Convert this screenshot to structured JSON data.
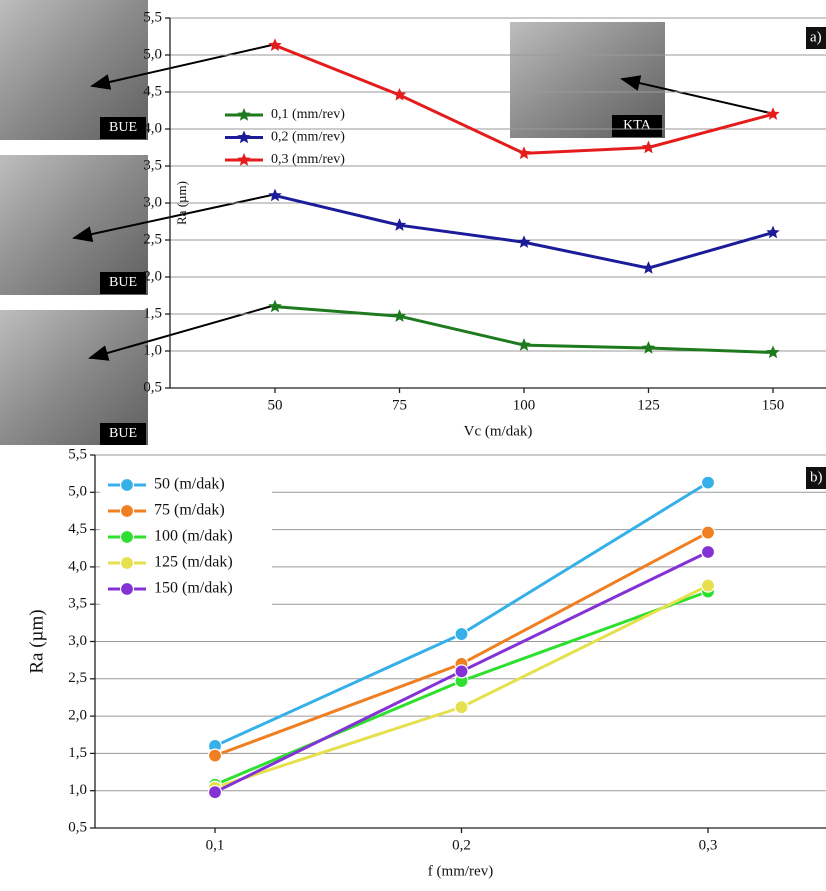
{
  "chart_data": [
    {
      "type": "line",
      "marker": "star",
      "panel_label": "a)",
      "xlabel": "Vc (m/dak)",
      "ylabel": "Ra (µm)",
      "categories": [
        "50",
        "75",
        "100",
        "125",
        "150"
      ],
      "series": [
        {
          "name": "0,1 (mm/rev)",
          "color": "#1f7a1f",
          "values": [
            1.6,
            1.47,
            1.08,
            1.04,
            0.98
          ]
        },
        {
          "name": "0,2 (mm/rev)",
          "color": "#1c1c9a",
          "values": [
            3.1,
            2.7,
            2.47,
            2.12,
            2.6
          ]
        },
        {
          "name": "0,3 (mm/rev)",
          "color": "#e41c1c",
          "values": [
            5.13,
            4.46,
            3.67,
            3.75,
            4.2
          ]
        }
      ],
      "ylim": [
        0.5,
        5.5
      ],
      "yticks": [
        {
          "value": 0.5,
          "label": "0,5"
        },
        {
          "value": 1.0,
          "label": "1,0"
        },
        {
          "value": 1.5,
          "label": "1,5"
        },
        {
          "value": 2.0,
          "label": "2,0"
        },
        {
          "value": 2.5,
          "label": "2,5"
        },
        {
          "value": 3.0,
          "label": "3,0"
        },
        {
          "value": 3.5,
          "label": "3,5"
        },
        {
          "value": 4.0,
          "label": "4,0"
        },
        {
          "value": 4.5,
          "label": "4,5"
        },
        {
          "value": 5.0,
          "label": "5,0"
        },
        {
          "value": 5.5,
          "label": "5,5"
        }
      ],
      "grid": true,
      "annotations": [
        "BUE",
        "BUE",
        "BUE",
        "KTA"
      ]
    },
    {
      "type": "line",
      "marker": "circle",
      "panel_label": "b)",
      "xlabel": "f (mm/rev)",
      "ylabel": "Ra (µm)",
      "categories": [
        "0,1",
        "0,2",
        "0,3"
      ],
      "series": [
        {
          "name": "50 (m/dak)",
          "color": "#35b0e8",
          "values": [
            1.6,
            3.1,
            5.13
          ]
        },
        {
          "name": "75 (m/dak)",
          "color": "#f07f22",
          "values": [
            1.47,
            2.7,
            4.46
          ]
        },
        {
          "name": "100 (m/dak)",
          "color": "#2ee02e",
          "values": [
            1.08,
            2.47,
            3.67
          ]
        },
        {
          "name": "125 (m/dak)",
          "color": "#e6e04e",
          "values": [
            1.04,
            2.12,
            3.75
          ]
        },
        {
          "name": "150 (m/dak)",
          "color": "#8432d6",
          "values": [
            0.98,
            2.6,
            4.2
          ]
        }
      ],
      "ylim": [
        0.5,
        5.5
      ],
      "yticks": [
        {
          "value": 0.5,
          "label": "0,5"
        },
        {
          "value": 1.0,
          "label": "1,0"
        },
        {
          "value": 1.5,
          "label": "1,5"
        },
        {
          "value": 2.0,
          "label": "2,0"
        },
        {
          "value": 2.5,
          "label": "2,5"
        },
        {
          "value": 3.0,
          "label": "3,0"
        },
        {
          "value": 3.5,
          "label": "3,5"
        },
        {
          "value": 4.0,
          "label": "4,0"
        },
        {
          "value": 4.5,
          "label": "4,5"
        },
        {
          "value": 5.0,
          "label": "5,0"
        },
        {
          "value": 5.5,
          "label": "5,5"
        }
      ],
      "grid": true
    }
  ]
}
